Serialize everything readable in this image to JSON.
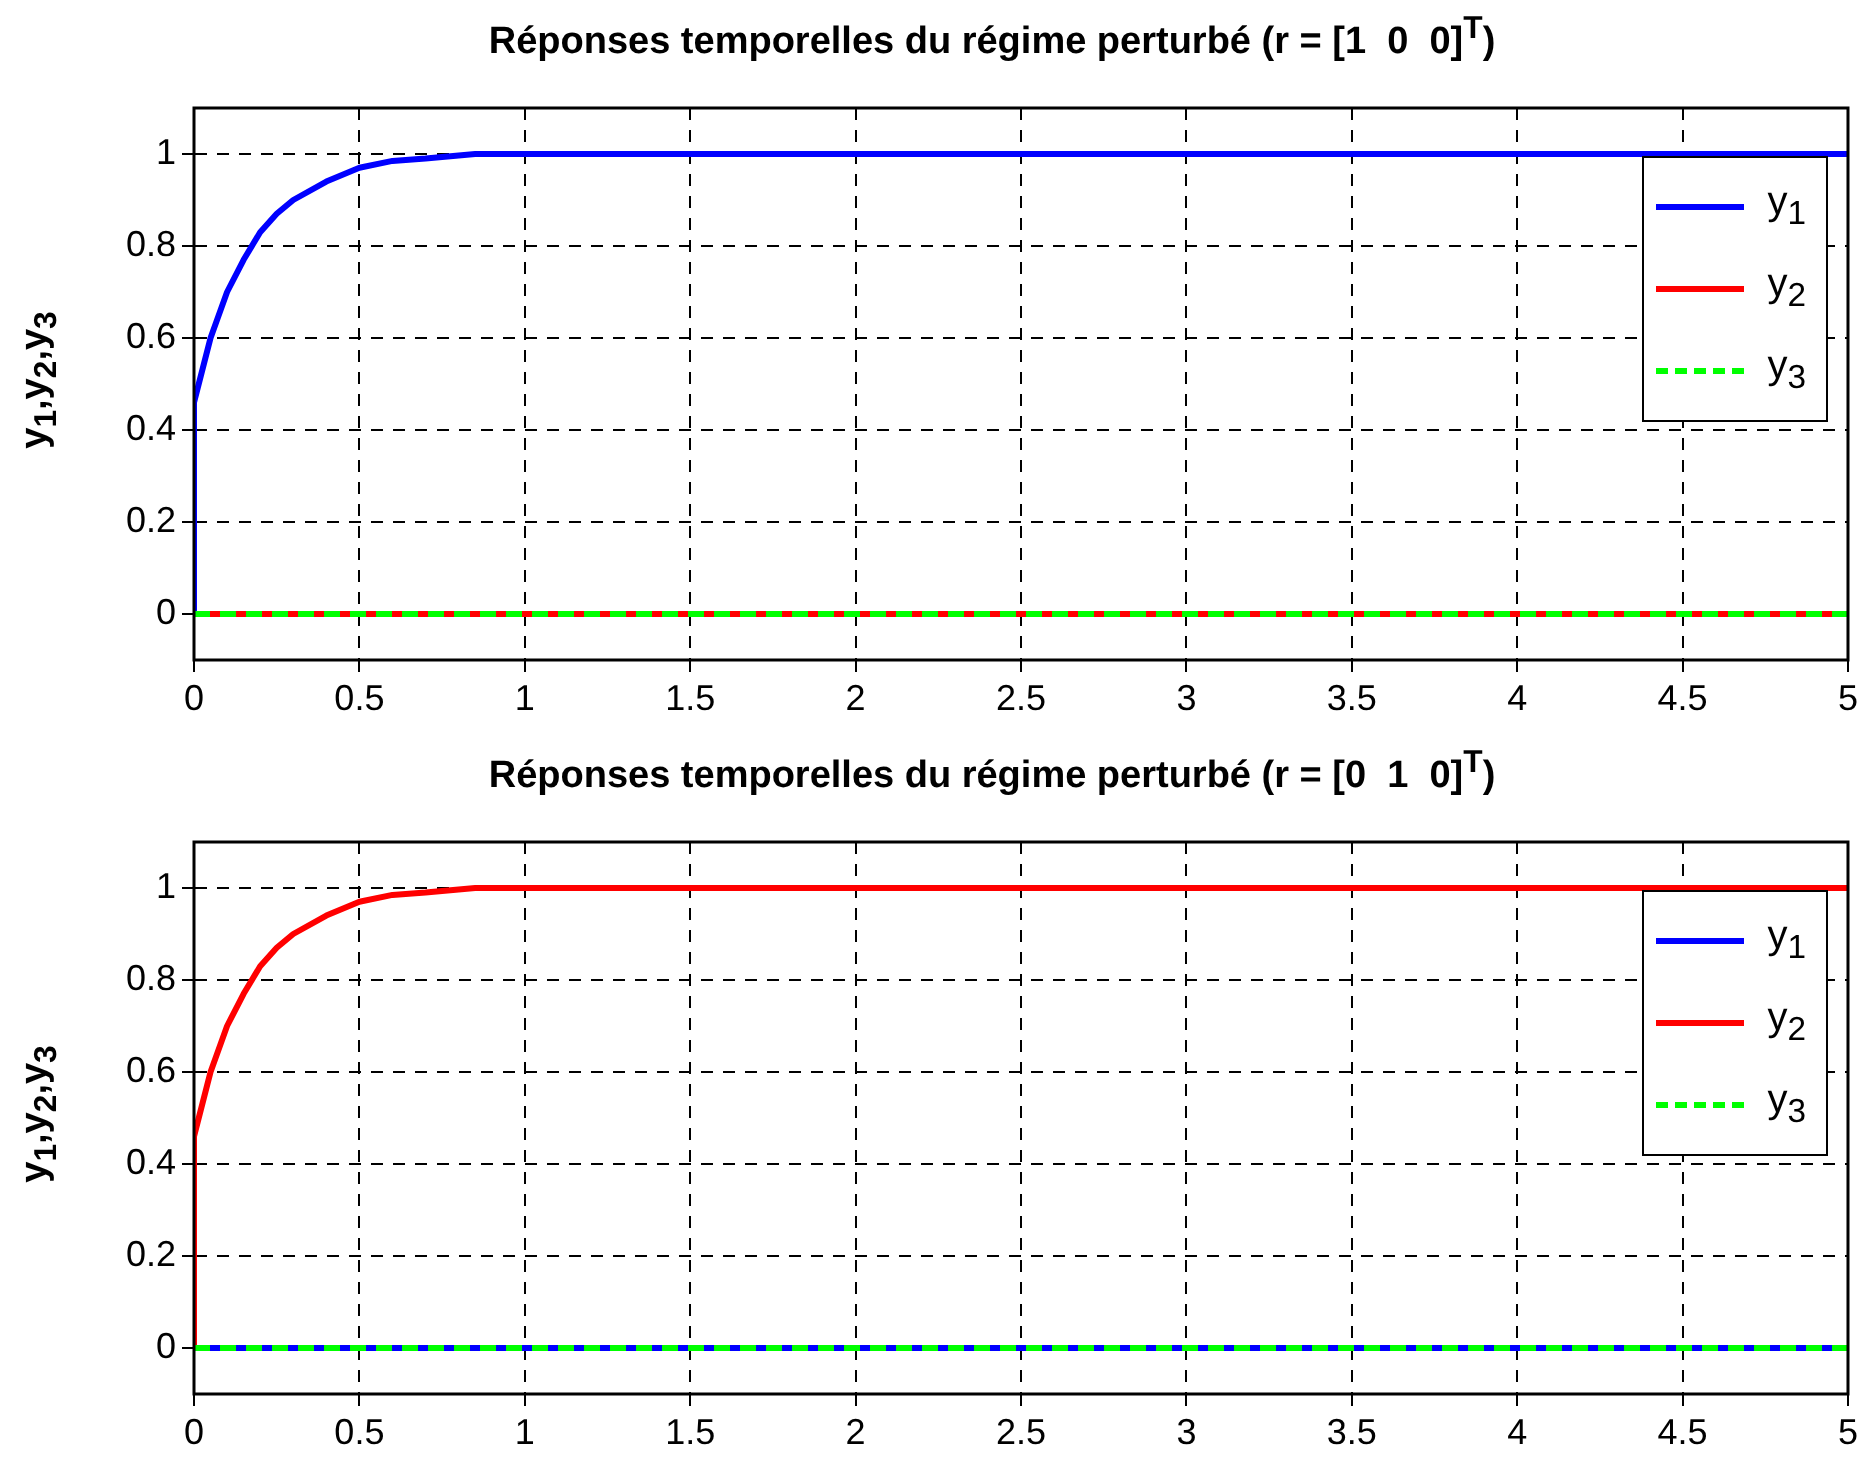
{
  "chart_data": [
    {
      "type": "line",
      "title": "Réponses temporelles du régime perturbé (r = [1  0  0]$^{T}$)",
      "ylabel": "y$_{1}$,y$_{2}$,y$_{3}$",
      "xlim": [
        0,
        5
      ],
      "xticks": [
        0,
        0.5,
        1,
        1.5,
        2,
        2.5,
        3,
        3.5,
        4,
        4.5,
        5
      ],
      "ylim": [
        -0.1,
        1.1
      ],
      "yticks": [
        0,
        0.2,
        0.4,
        0.6,
        0.8,
        1
      ],
      "grid": true,
      "legend": "top right",
      "series": [
        {
          "name": "y$_{1}$",
          "color": "#0000ff",
          "line_style": "solid",
          "x": [
            0,
            0,
            0.05,
            0.1,
            0.15,
            0.2,
            0.25,
            0.3,
            0.4,
            0.5,
            0.6,
            0.7,
            0.85,
            5
          ],
          "values": [
            0,
            0.46,
            0.6,
            0.7,
            0.77,
            0.83,
            0.87,
            0.9,
            0.94,
            0.97,
            0.985,
            0.99,
            1,
            1
          ]
        },
        {
          "name": "y$_{2}$",
          "color": "#ff0000",
          "line_style": "solid",
          "x": [
            0,
            5
          ],
          "values": [
            0,
            0
          ]
        },
        {
          "name": "y$_{3}$",
          "color": "#00ff00",
          "line_style": "dashed",
          "x": [
            0,
            5
          ],
          "values": [
            0,
            0
          ]
        }
      ]
    },
    {
      "type": "line",
      "title": "Réponses temporelles du régime perturbé (r = [0  1  0]$^{T}$)",
      "ylabel": "y$_{1}$,y$_{2}$,y$_{3}$",
      "xlim": [
        0,
        5
      ],
      "xticks": [
        0,
        0.5,
        1,
        1.5,
        2,
        2.5,
        3,
        3.5,
        4,
        4.5,
        5
      ],
      "ylim": [
        -0.1,
        1.1
      ],
      "yticks": [
        0,
        0.2,
        0.4,
        0.6,
        0.8,
        1
      ],
      "grid": true,
      "legend": "top right",
      "series": [
        {
          "name": "y$_{1}$",
          "color": "#0000ff",
          "line_style": "solid",
          "x": [
            0,
            5
          ],
          "values": [
            0,
            0
          ]
        },
        {
          "name": "y$_{2}$",
          "color": "#ff0000",
          "line_style": "solid",
          "x": [
            0,
            0,
            0.05,
            0.1,
            0.15,
            0.2,
            0.25,
            0.3,
            0.4,
            0.5,
            0.6,
            0.7,
            0.85,
            5
          ],
          "values": [
            0,
            0.46,
            0.6,
            0.7,
            0.77,
            0.83,
            0.87,
            0.9,
            0.94,
            0.97,
            0.985,
            0.99,
            1,
            1
          ]
        },
        {
          "name": "y$_{3}$",
          "color": "#00ff00",
          "line_style": "dashed",
          "x": [
            0,
            5
          ],
          "values": [
            0,
            0
          ]
        }
      ]
    }
  ]
}
